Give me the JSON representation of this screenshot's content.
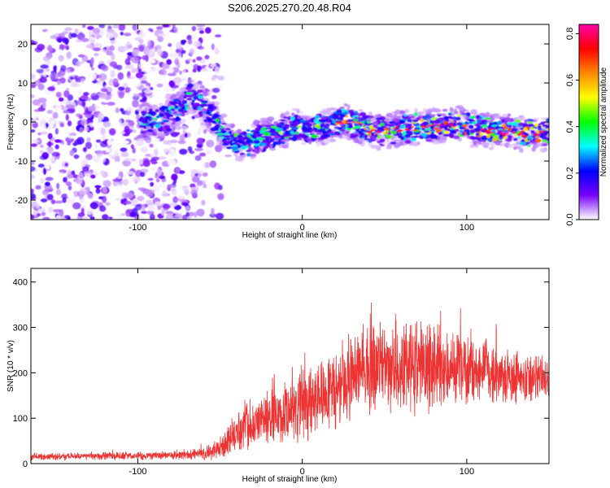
{
  "title": "S206.2025.270.20.48.R04",
  "chart_data": [
    {
      "type": "heatmap",
      "xlabel": "Height of straight line (km)",
      "ylabel": "Frequency (Hz)",
      "xlim": [
        -165,
        150
      ],
      "ylim": [
        -25,
        25
      ],
      "xticks": [
        {
          "value": -100,
          "label": "-100"
        },
        {
          "value": 0,
          "label": "0"
        },
        {
          "value": 100,
          "label": "100"
        }
      ],
      "yticks": [
        {
          "value": -20,
          "label": "-20"
        },
        {
          "value": -10,
          "label": "-10"
        },
        {
          "value": 0,
          "label": "0"
        },
        {
          "value": 10,
          "label": "10"
        },
        {
          "value": 20,
          "label": "20"
        }
      ],
      "noise_region_x": [
        -165,
        -48
      ],
      "signal_track": [
        {
          "x": -95,
          "f": 0.0
        },
        {
          "x": -85,
          "f": 0.5
        },
        {
          "x": -75,
          "f": 3.0
        },
        {
          "x": -68,
          "f": 6.5
        },
        {
          "x": -62,
          "f": 5.0
        },
        {
          "x": -55,
          "f": 2.0
        },
        {
          "x": -50,
          "f": -1.5
        },
        {
          "x": -45,
          "f": -4.5
        },
        {
          "x": -35,
          "f": -5.5
        },
        {
          "x": -25,
          "f": -4.0
        },
        {
          "x": -15,
          "f": -3.0
        },
        {
          "x": -5,
          "f": -1.0
        },
        {
          "x": 5,
          "f": -2.0
        },
        {
          "x": 15,
          "f": -1.0
        },
        {
          "x": 25,
          "f": 0.5
        },
        {
          "x": 35,
          "f": -1.0
        },
        {
          "x": 45,
          "f": -2.5
        },
        {
          "x": 55,
          "f": -2.0
        },
        {
          "x": 65,
          "f": -1.5
        },
        {
          "x": 75,
          "f": -1.5
        },
        {
          "x": 85,
          "f": -1.0
        },
        {
          "x": 95,
          "f": -0.5
        },
        {
          "x": 105,
          "f": -2.0
        },
        {
          "x": 115,
          "f": -2.5
        },
        {
          "x": 125,
          "f": -2.0
        },
        {
          "x": 135,
          "f": -3.0
        },
        {
          "x": 145,
          "f": -3.0
        }
      ],
      "colorbar": {
        "label": "Normalized spectral amplitude",
        "range": [
          0.0,
          0.84
        ],
        "ticks": [
          {
            "value": 0.0,
            "label": "0.0"
          },
          {
            "value": 0.2,
            "label": "0.2"
          },
          {
            "value": 0.4,
            "label": "0.4"
          },
          {
            "value": 0.6,
            "label": "0.6"
          },
          {
            "value": 0.8,
            "label": "0.8"
          }
        ],
        "colors": [
          "#ffffff",
          "#7700ff",
          "#0000ff",
          "#00ffff",
          "#00ff00",
          "#ffff00",
          "#ff8800",
          "#ff0000",
          "#ff00aa"
        ]
      }
    },
    {
      "type": "line",
      "xlabel": "Height of straight line (km)",
      "ylabel": "SNR (10 * v/v)",
      "xlim": [
        -165,
        150
      ],
      "ylim": [
        0,
        430
      ],
      "line_color": "#ee3333",
      "xticks": [
        {
          "value": -100,
          "label": "-100"
        },
        {
          "value": 0,
          "label": "0"
        },
        {
          "value": 100,
          "label": "100"
        }
      ],
      "yticks": [
        {
          "value": 0,
          "label": "0"
        },
        {
          "value": 100,
          "label": "100"
        },
        {
          "value": 200,
          "label": "200"
        },
        {
          "value": 300,
          "label": "300"
        },
        {
          "value": 400,
          "label": "400"
        }
      ],
      "envelope": [
        {
          "x": -165,
          "base": 15,
          "amp": 8
        },
        {
          "x": -70,
          "base": 18,
          "amp": 12
        },
        {
          "x": -55,
          "base": 25,
          "amp": 20
        },
        {
          "x": -45,
          "base": 50,
          "amp": 35
        },
        {
          "x": -35,
          "base": 85,
          "amp": 60
        },
        {
          "x": -10,
          "base": 110,
          "amp": 80
        },
        {
          "x": 10,
          "base": 150,
          "amp": 100
        },
        {
          "x": 30,
          "base": 190,
          "amp": 110
        },
        {
          "x": 50,
          "base": 215,
          "amp": 120
        },
        {
          "x": 70,
          "base": 215,
          "amp": 120
        },
        {
          "x": 90,
          "base": 210,
          "amp": 105
        },
        {
          "x": 110,
          "base": 200,
          "amp": 90
        },
        {
          "x": 130,
          "base": 190,
          "amp": 70
        },
        {
          "x": 150,
          "base": 185,
          "amp": 55
        }
      ]
    }
  ]
}
